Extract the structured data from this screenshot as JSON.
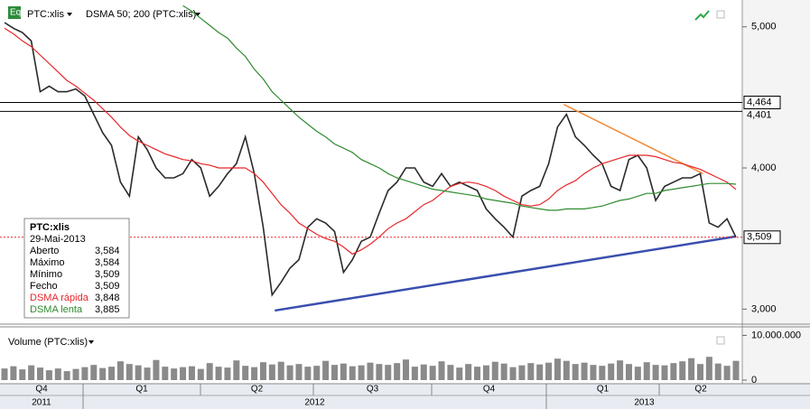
{
  "chart_data": {
    "type": "line",
    "symbol_label": "PTC:xlis",
    "indicator_label": "DSMA 50; 200 (PTC:xlis)",
    "volume_label": "Volume (PTC:xlis)",
    "quarters": [
      "Q4",
      "Q1",
      "Q2",
      "Q3",
      "Q4",
      "Q1",
      "Q2"
    ],
    "years": [
      "2011",
      "2012",
      "2013"
    ],
    "ylim": [
      2.9,
      5.19
    ],
    "yticks": [
      {
        "value": 3,
        "label": "3,000"
      },
      {
        "value": 4,
        "label": "4,000"
      },
      {
        "value": 5,
        "label": "5,000"
      }
    ],
    "series": [
      {
        "name": "PTC:xlis",
        "color": "#2a2a2a",
        "values": [
          5.03,
          4.99,
          4.96,
          4.9,
          4.54,
          4.58,
          4.54,
          4.54,
          4.56,
          4.51,
          4.38,
          4.25,
          4.16,
          3.9,
          3.8,
          4.22,
          4.13,
          4.0,
          3.93,
          3.93,
          3.96,
          4.06,
          4.0,
          3.8,
          3.87,
          3.96,
          4.03,
          4.22,
          3.96,
          3.58,
          3.1,
          3.19,
          3.29,
          3.35,
          3.58,
          3.64,
          3.61,
          3.55,
          3.26,
          3.35,
          3.48,
          3.51,
          3.68,
          3.84,
          3.9,
          4.0,
          4.0,
          3.9,
          3.87,
          3.96,
          3.87,
          3.9,
          3.87,
          3.84,
          3.71,
          3.64,
          3.58,
          3.51,
          3.8,
          3.84,
          3.87,
          4.03,
          4.29,
          4.38,
          4.22,
          4.16,
          4.09,
          4.03,
          3.87,
          3.84,
          4.06,
          4.09,
          4.0,
          3.77,
          3.87,
          3.9,
          3.93,
          3.93,
          3.96,
          3.61,
          3.58,
          3.64,
          3.509
        ]
      },
      {
        "name": "DSMA rápida",
        "color": "#e8262a",
        "values": [
          4.99,
          4.95,
          4.9,
          4.86,
          4.8,
          4.74,
          4.68,
          4.62,
          4.58,
          4.53,
          4.48,
          4.42,
          4.36,
          4.29,
          4.23,
          4.19,
          4.16,
          4.13,
          4.1,
          4.08,
          4.06,
          4.05,
          4.03,
          4.02,
          4.0,
          4.0,
          4.0,
          4.0,
          3.96,
          3.9,
          3.82,
          3.74,
          3.68,
          3.61,
          3.57,
          3.53,
          3.5,
          3.48,
          3.44,
          3.39,
          3.42,
          3.46,
          3.51,
          3.57,
          3.61,
          3.64,
          3.69,
          3.74,
          3.77,
          3.82,
          3.87,
          3.89,
          3.9,
          3.89,
          3.87,
          3.84,
          3.8,
          3.77,
          3.74,
          3.73,
          3.74,
          3.78,
          3.84,
          3.88,
          3.91,
          3.96,
          4.0,
          4.03,
          4.05,
          4.07,
          4.09,
          4.09,
          4.09,
          4.08,
          4.06,
          4.04,
          4.03,
          4.01,
          3.99,
          3.96,
          3.93,
          3.9,
          3.848
        ]
      },
      {
        "name": "DSMA lenta",
        "color": "#2e8b2e",
        "values": [
          null,
          null,
          null,
          null,
          null,
          null,
          null,
          null,
          null,
          null,
          null,
          null,
          null,
          null,
          null,
          null,
          null,
          null,
          null,
          null,
          5.15,
          5.11,
          5.06,
          5.01,
          4.96,
          4.92,
          4.85,
          4.79,
          4.7,
          4.63,
          4.54,
          4.48,
          4.42,
          4.36,
          4.31,
          4.26,
          4.22,
          4.17,
          4.14,
          4.11,
          4.06,
          4.03,
          4.0,
          3.96,
          3.93,
          3.91,
          3.89,
          3.87,
          3.85,
          3.84,
          3.83,
          3.82,
          3.81,
          3.8,
          3.78,
          3.77,
          3.76,
          3.75,
          3.73,
          3.72,
          3.71,
          3.7,
          3.7,
          3.71,
          3.71,
          3.71,
          3.72,
          3.73,
          3.75,
          3.77,
          3.78,
          3.8,
          3.82,
          3.82,
          3.84,
          3.85,
          3.86,
          3.87,
          3.88,
          3.89,
          3.89,
          3.89,
          3.885
        ]
      }
    ],
    "levels": [
      {
        "value": 4.464,
        "label": "4,464"
      },
      {
        "value": 4.401,
        "label": "4,401"
      }
    ],
    "last_price": {
      "value": 3.509,
      "label": "3,509",
      "color": "#e8262a"
    },
    "trendlines": [
      {
        "color": "#3a4fae",
        "start": 2.99,
        "end": 3.515
      },
      {
        "color": "#f08a3a",
        "start": 4.45,
        "end": 3.96
      }
    ],
    "volume": {
      "color": "#8a8a8a",
      "ylim": [
        0,
        11500000
      ],
      "yticks": [
        0,
        {
          "value": 10000000,
          "label": "10.000.000"
        }
      ],
      "values": [
        2600000,
        3100000,
        2400000,
        3300000,
        2800000,
        2200000,
        2600000,
        2000000,
        2500000,
        2900000,
        3400000,
        2700000,
        3000000,
        4200000,
        3600000,
        3300000,
        2800000,
        4500000,
        3000000,
        2600000,
        2900000,
        3100000,
        2500000,
        3800000,
        3000000,
        2800000,
        4400000,
        3200000,
        2900000,
        4000000,
        3500000,
        4100000,
        3300000,
        3600000,
        3000000,
        3200000,
        4300000,
        3400000,
        3700000,
        3100000,
        3300000,
        3900000,
        3600000,
        3400000,
        3800000,
        4600000,
        3000000,
        3500000,
        3200000,
        4200000,
        3400000,
        2800000,
        3600000,
        3000000,
        3300000,
        4100000,
        3700000,
        2900000,
        3300000,
        3800000,
        3500000,
        3900000,
        4800000,
        4300000,
        3600000,
        3900000,
        3400000,
        3200000,
        3700000,
        4400000,
        3600000,
        3000000,
        4000000,
        3400000,
        3300000,
        3800000,
        4200000,
        4900000,
        3600000,
        5200000,
        3700000,
        3200000,
        4300000
      ]
    },
    "info": {
      "title": "PTC:xlis",
      "date": "29-Mai-2013",
      "rows": [
        [
          "Aberto",
          "3,584"
        ],
        [
          "Máximo",
          "3,584"
        ],
        [
          "Mínimo",
          "3,509"
        ],
        [
          "Fecho",
          "3,509"
        ],
        [
          "DSMA rápida",
          "3,848"
        ],
        [
          "DSMA lenta",
          "3,885"
        ]
      ]
    }
  }
}
